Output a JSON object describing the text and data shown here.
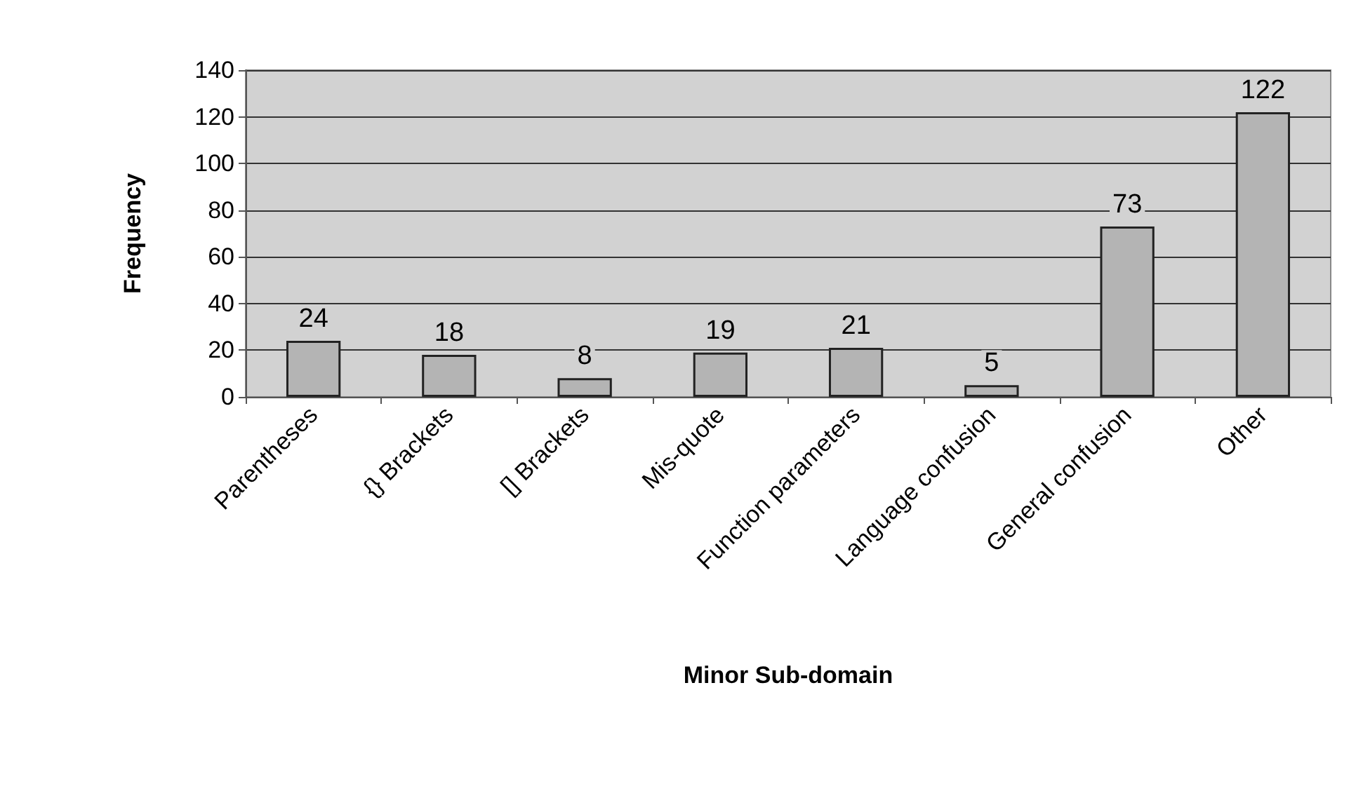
{
  "chart_data": {
    "type": "bar",
    "xlabel": "Minor Sub-domain",
    "ylabel": "Frequency",
    "categories": [
      "Parentheses",
      "{} Brackets",
      "[] Brackets",
      "Mis-quote",
      "Function parameters",
      "Language confusion",
      "General confusion",
      "Other"
    ],
    "values": [
      24,
      18,
      8,
      19,
      21,
      5,
      73,
      122
    ],
    "color": "#b4b4b4",
    "ylim": [
      0,
      140
    ],
    "yticks": [
      0,
      20,
      40,
      60,
      80,
      100,
      120,
      140
    ],
    "grid": "y",
    "data_labels": true
  }
}
